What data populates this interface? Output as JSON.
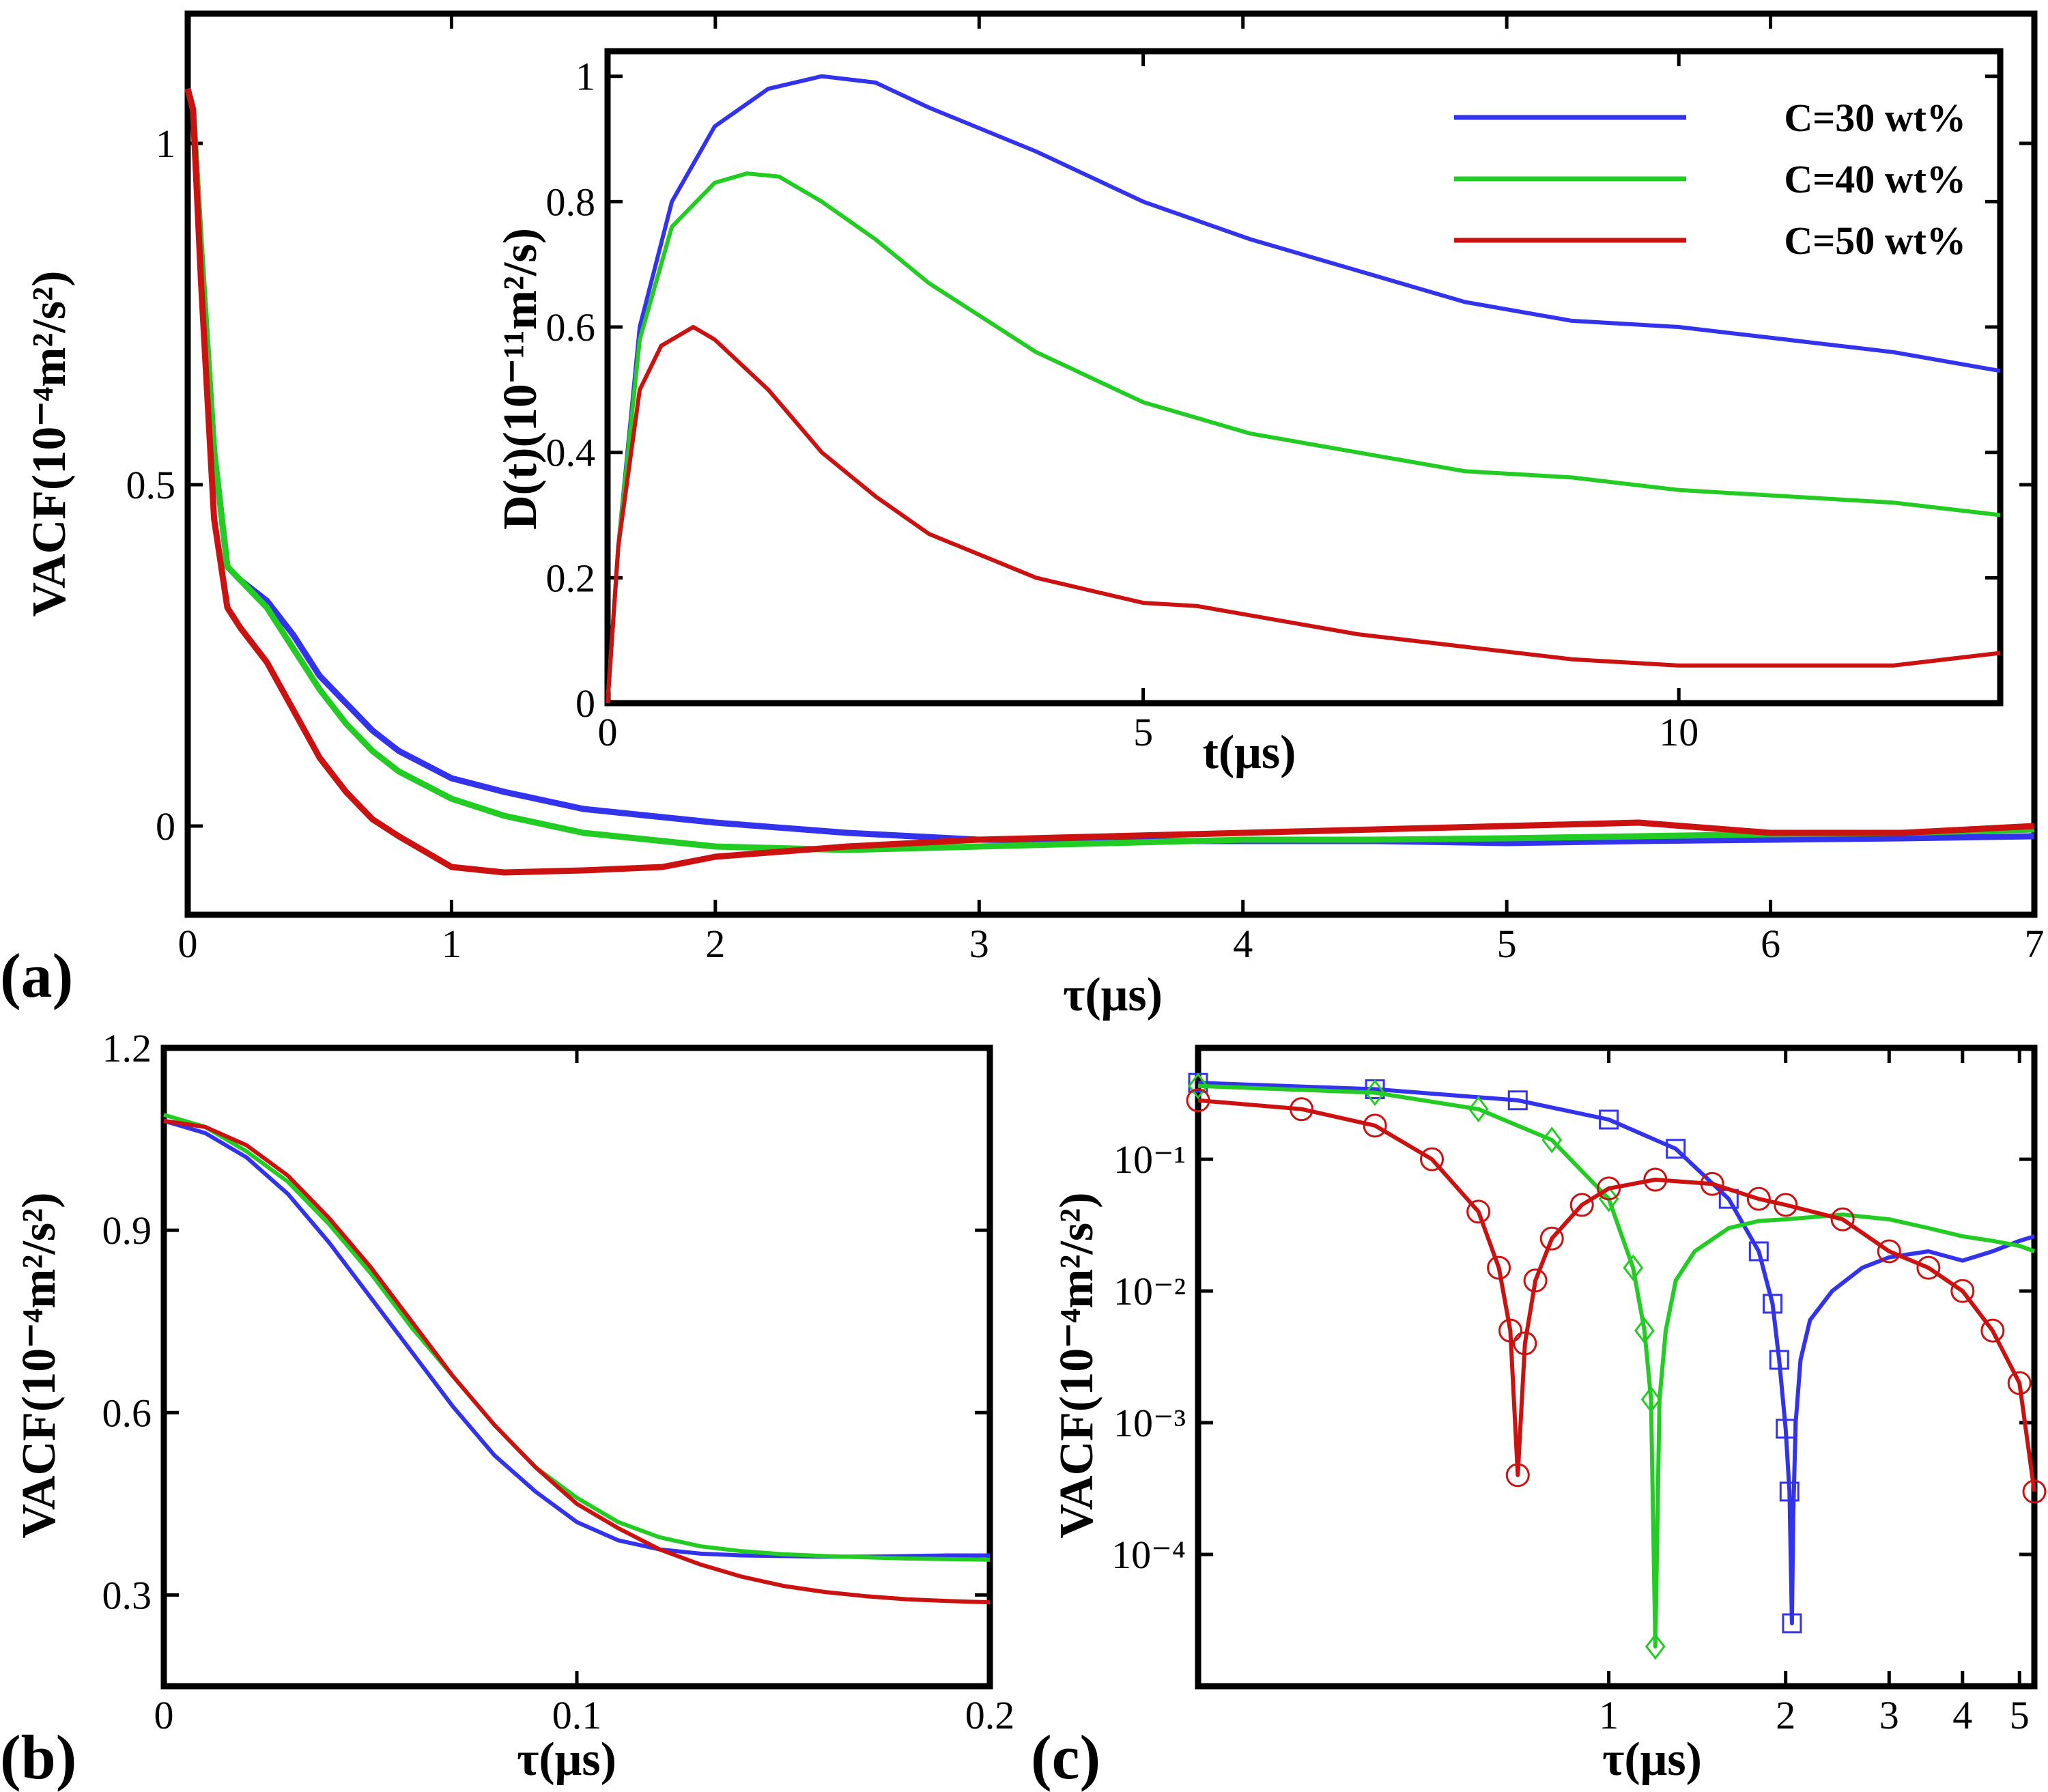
{
  "colors": {
    "c30": "#3333ee",
    "c40": "#22cc22",
    "c50": "#cc1111"
  },
  "chart_data": [
    {
      "id": "a",
      "type": "line",
      "panel_label": "(a)",
      "xlabel": "τ(μs)",
      "ylabel": "VACF(10⁻⁴m²/s²)",
      "xlim": [
        0,
        7
      ],
      "ylim": [
        -0.13,
        1.19
      ],
      "x_ticks": [
        0,
        1,
        2,
        3,
        4,
        5,
        6,
        7
      ],
      "x_tick_labels": [
        "0",
        "1",
        "2",
        "3",
        "4",
        "5",
        "6",
        "7"
      ],
      "y_ticks": [
        0,
        0.5,
        1
      ],
      "y_tick_labels": [
        "0",
        "0.5",
        "1"
      ],
      "series": [
        {
          "name": "C=30 wt%",
          "color_key": "c30",
          "x": [
            0,
            0.02,
            0.05,
            0.1,
            0.15,
            0.2,
            0.3,
            0.4,
            0.5,
            0.6,
            0.7,
            0.8,
            1.0,
            1.2,
            1.5,
            2.0,
            2.5,
            3.0,
            3.5,
            4.0,
            4.5,
            5.0,
            5.5,
            6.0,
            6.5,
            7.0
          ],
          "y": [
            1.08,
            1.05,
            0.85,
            0.55,
            0.38,
            0.36,
            0.33,
            0.28,
            0.22,
            0.18,
            0.14,
            0.11,
            0.07,
            0.05,
            0.025,
            0.005,
            -0.01,
            -0.02,
            -0.022,
            -0.022,
            -0.022,
            -0.025,
            -0.022,
            -0.02,
            -0.018,
            -0.015
          ]
        },
        {
          "name": "C=40 wt%",
          "color_key": "c40",
          "x": [
            0,
            0.02,
            0.05,
            0.1,
            0.15,
            0.2,
            0.3,
            0.4,
            0.5,
            0.6,
            0.7,
            0.8,
            1.0,
            1.2,
            1.5,
            2.0,
            2.5,
            3.0,
            3.5,
            4.0,
            4.5,
            5.0,
            5.5,
            6.0,
            6.5,
            7.0
          ],
          "y": [
            1.08,
            1.05,
            0.85,
            0.55,
            0.38,
            0.36,
            0.32,
            0.26,
            0.2,
            0.15,
            0.11,
            0.08,
            0.04,
            0.015,
            -0.01,
            -0.03,
            -0.035,
            -0.03,
            -0.025,
            -0.02,
            -0.02,
            -0.018,
            -0.015,
            -0.012,
            -0.01,
            -0.005
          ]
        },
        {
          "name": "C=50 wt%",
          "color_key": "c50",
          "x": [
            0,
            0.02,
            0.05,
            0.1,
            0.15,
            0.2,
            0.3,
            0.4,
            0.5,
            0.6,
            0.7,
            0.8,
            1.0,
            1.2,
            1.5,
            1.8,
            2.0,
            2.5,
            3.0,
            3.5,
            4.0,
            4.5,
            5.0,
            5.5,
            6.0,
            6.5,
            7.0
          ],
          "y": [
            1.08,
            1.05,
            0.8,
            0.45,
            0.32,
            0.29,
            0.24,
            0.17,
            0.1,
            0.05,
            0.01,
            -0.015,
            -0.06,
            -0.068,
            -0.065,
            -0.06,
            -0.045,
            -0.03,
            -0.02,
            -0.015,
            -0.01,
            -0.005,
            0.0,
            0.005,
            -0.01,
            -0.01,
            0.0
          ]
        }
      ]
    },
    {
      "id": "a_inset",
      "type": "line",
      "xlabel": "t(μs)",
      "ylabel": "D(t)(10⁻¹¹m²/s)",
      "xlim": [
        0,
        13
      ],
      "ylim": [
        0,
        1.04
      ],
      "x_ticks": [
        0,
        5,
        10
      ],
      "x_tick_labels": [
        "0",
        "5",
        "10"
      ],
      "y_ticks": [
        0,
        0.2,
        0.4,
        0.6,
        0.8,
        1
      ],
      "y_tick_labels": [
        "0",
        "0.2",
        "0.4",
        "0.6",
        "0.8",
        "1"
      ],
      "legend": {
        "position": "top-right",
        "entries": [
          "C=30 wt%",
          "C=40 wt%",
          "C=50 wt%"
        ]
      },
      "series": [
        {
          "name": "C=30 wt%",
          "color_key": "c30",
          "x": [
            0,
            0.1,
            0.3,
            0.6,
            1.0,
            1.5,
            2.0,
            2.5,
            3,
            4,
            5,
            6,
            7,
            8,
            9,
            10,
            11,
            12,
            13
          ],
          "y": [
            0,
            0.25,
            0.6,
            0.8,
            0.92,
            0.98,
            1.0,
            0.99,
            0.95,
            0.88,
            0.8,
            0.74,
            0.69,
            0.64,
            0.61,
            0.6,
            0.58,
            0.56,
            0.53
          ]
        },
        {
          "name": "C=40 wt%",
          "color_key": "c40",
          "x": [
            0,
            0.1,
            0.3,
            0.6,
            1.0,
            1.3,
            1.6,
            2.0,
            2.5,
            3,
            4,
            5,
            6,
            7,
            8,
            9,
            10,
            11,
            12,
            13
          ],
          "y": [
            0,
            0.25,
            0.58,
            0.76,
            0.83,
            0.845,
            0.84,
            0.8,
            0.74,
            0.67,
            0.56,
            0.48,
            0.43,
            0.4,
            0.37,
            0.36,
            0.34,
            0.33,
            0.32,
            0.3
          ]
        },
        {
          "name": "C=50 wt%",
          "color_key": "c50",
          "x": [
            0,
            0.1,
            0.3,
            0.5,
            0.8,
            1.0,
            1.5,
            2.0,
            2.5,
            3,
            4,
            5,
            5.5,
            6,
            7,
            8,
            9,
            10,
            11,
            12,
            13
          ],
          "y": [
            0,
            0.25,
            0.5,
            0.57,
            0.6,
            0.58,
            0.5,
            0.4,
            0.33,
            0.27,
            0.2,
            0.16,
            0.155,
            0.14,
            0.11,
            0.09,
            0.07,
            0.06,
            0.06,
            0.06,
            0.08
          ]
        }
      ]
    },
    {
      "id": "b",
      "type": "line",
      "panel_label": "(b)",
      "xlabel": "τ(μs)",
      "ylabel": "VACF(10⁻⁴m²/s²)",
      "xlim": [
        0,
        0.2
      ],
      "ylim": [
        0.15,
        1.2
      ],
      "x_ticks": [
        0,
        0.1,
        0.2
      ],
      "x_tick_labels": [
        "0",
        "0.1",
        "0.2"
      ],
      "y_ticks": [
        0.3,
        0.6,
        0.9,
        1.2
      ],
      "y_tick_labels": [
        "0.3",
        "0.6",
        "0.9",
        "1.2"
      ],
      "series": [
        {
          "name": "C=30 wt%",
          "color_key": "c30",
          "x": [
            0,
            0.01,
            0.02,
            0.03,
            0.04,
            0.05,
            0.06,
            0.07,
            0.08,
            0.09,
            0.1,
            0.11,
            0.12,
            0.13,
            0.14,
            0.15,
            0.16,
            0.17,
            0.18,
            0.19,
            0.2
          ],
          "y": [
            1.08,
            1.06,
            1.02,
            0.96,
            0.88,
            0.79,
            0.7,
            0.61,
            0.53,
            0.47,
            0.42,
            0.39,
            0.375,
            0.368,
            0.365,
            0.364,
            0.363,
            0.363,
            0.364,
            0.365,
            0.365
          ]
        },
        {
          "name": "C=40 wt%",
          "color_key": "c40",
          "x": [
            0,
            0.01,
            0.02,
            0.03,
            0.04,
            0.05,
            0.06,
            0.07,
            0.08,
            0.09,
            0.1,
            0.11,
            0.12,
            0.13,
            0.14,
            0.15,
            0.16,
            0.17,
            0.18,
            0.19,
            0.2
          ],
          "y": [
            1.09,
            1.07,
            1.03,
            0.98,
            0.91,
            0.83,
            0.74,
            0.66,
            0.58,
            0.51,
            0.46,
            0.42,
            0.395,
            0.38,
            0.372,
            0.367,
            0.364,
            0.362,
            0.36,
            0.359,
            0.358
          ]
        },
        {
          "name": "C=50 wt%",
          "color_key": "c50",
          "x": [
            0,
            0.01,
            0.02,
            0.03,
            0.04,
            0.05,
            0.06,
            0.07,
            0.08,
            0.09,
            0.1,
            0.11,
            0.12,
            0.13,
            0.14,
            0.15,
            0.16,
            0.17,
            0.18,
            0.19,
            0.2
          ],
          "y": [
            1.08,
            1.07,
            1.04,
            0.99,
            0.92,
            0.84,
            0.75,
            0.66,
            0.58,
            0.51,
            0.45,
            0.41,
            0.375,
            0.35,
            0.33,
            0.315,
            0.305,
            0.298,
            0.293,
            0.29,
            0.288
          ]
        }
      ]
    },
    {
      "id": "c",
      "type": "line",
      "panel_label": "(c)",
      "xlabel": "τ(μs)",
      "ylabel": "VACF(10⁻⁴m²/s²)",
      "xscale": "log",
      "yscale": "log",
      "xlim": [
        0.2,
        5.3
      ],
      "ylim": [
        1e-05,
        0.7
      ],
      "x_ticks": [
        1,
        2,
        3,
        4,
        5
      ],
      "x_tick_labels": [
        "1",
        "2",
        "3",
        "4",
        "5"
      ],
      "y_ticks": [
        0.0001,
        0.001,
        0.01,
        0.1
      ],
      "y_tick_labels": [
        "10⁻⁴",
        "10⁻³",
        "10⁻²",
        "10⁻¹"
      ],
      "series": [
        {
          "name": "C=30 wt%",
          "color_key": "c30",
          "marker": "square",
          "x": [
            0.2,
            0.4,
            0.7,
            1.0,
            1.3,
            1.6,
            1.8,
            1.9,
            1.95,
            2.0,
            2.03,
            2.05,
            2.06,
            2.08,
            2.12,
            2.2,
            2.4,
            2.7,
            3.0,
            3.5,
            4.0,
            4.5,
            5.0,
            5.3
          ],
          "y": [
            0.38,
            0.34,
            0.28,
            0.2,
            0.12,
            0.05,
            0.02,
            0.008,
            0.003,
            0.0009,
            0.0003,
            3e-05,
            0.0002,
            0.001,
            0.003,
            0.006,
            0.01,
            0.015,
            0.018,
            0.02,
            0.017,
            0.02,
            0.024,
            0.026
          ]
        },
        {
          "name": "C=40 wt%",
          "color_key": "c40",
          "marker": "diamond",
          "x": [
            0.2,
            0.4,
            0.6,
            0.8,
            1.0,
            1.1,
            1.15,
            1.18,
            1.2,
            1.22,
            1.25,
            1.3,
            1.4,
            1.6,
            1.8,
            2.0,
            2.5,
            3.0,
            3.5,
            4.0,
            4.5,
            5.0,
            5.3
          ],
          "y": [
            0.36,
            0.32,
            0.24,
            0.14,
            0.05,
            0.015,
            0.005,
            0.0015,
            2e-05,
            0.0015,
            0.005,
            0.012,
            0.02,
            0.03,
            0.034,
            0.035,
            0.038,
            0.035,
            0.03,
            0.026,
            0.024,
            0.022,
            0.02
          ]
        },
        {
          "name": "C=50 wt%",
          "color_key": "c50",
          "marker": "circle",
          "x": [
            0.2,
            0.3,
            0.4,
            0.5,
            0.6,
            0.65,
            0.68,
            0.7,
            0.72,
            0.75,
            0.8,
            0.9,
            1.0,
            1.2,
            1.5,
            1.8,
            2.0,
            2.5,
            3.0,
            3.5,
            4.0,
            4.5,
            5.0,
            5.3
          ],
          "y": [
            0.28,
            0.24,
            0.18,
            0.1,
            0.04,
            0.015,
            0.005,
            0.0004,
            0.004,
            0.012,
            0.025,
            0.045,
            0.06,
            0.07,
            0.065,
            0.05,
            0.045,
            0.035,
            0.02,
            0.015,
            0.01,
            0.005,
            0.002,
            0.0003
          ]
        }
      ]
    }
  ]
}
